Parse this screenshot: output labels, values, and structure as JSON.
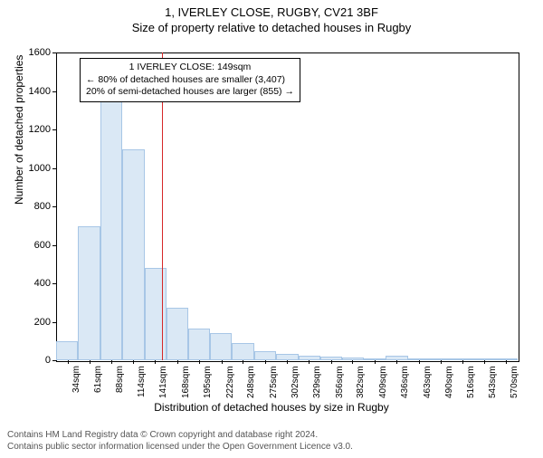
{
  "title": {
    "line1": "1, IVERLEY CLOSE, RUGBY, CV21 3BF",
    "line2": "Size of property relative to detached houses in Rugby"
  },
  "chart": {
    "type": "histogram",
    "ylabel": "Number of detached properties",
    "xlabel": "Distribution of detached houses by size in Rugby",
    "ylim": [
      0,
      1600
    ],
    "ytick_step": 200,
    "yticks": [
      0,
      200,
      400,
      600,
      800,
      1000,
      1200,
      1400,
      1600
    ],
    "x_range": [
      20,
      584
    ],
    "xticks": [
      34,
      61,
      88,
      114,
      141,
      168,
      195,
      222,
      248,
      275,
      302,
      329,
      356,
      382,
      409,
      436,
      463,
      490,
      516,
      543,
      570
    ],
    "xtick_unit": "sqm",
    "bars": [
      {
        "x0": 20,
        "x1": 47,
        "y": 100
      },
      {
        "x0": 47,
        "x1": 74,
        "y": 695
      },
      {
        "x0": 74,
        "x1": 101,
        "y": 1440
      },
      {
        "x0": 101,
        "x1": 128,
        "y": 1095
      },
      {
        "x0": 128,
        "x1": 155,
        "y": 480
      },
      {
        "x0": 155,
        "x1": 181,
        "y": 275
      },
      {
        "x0": 181,
        "x1": 208,
        "y": 165
      },
      {
        "x0": 208,
        "x1": 235,
        "y": 140
      },
      {
        "x0": 235,
        "x1": 262,
        "y": 90
      },
      {
        "x0": 262,
        "x1": 289,
        "y": 45
      },
      {
        "x0": 289,
        "x1": 316,
        "y": 35
      },
      {
        "x0": 316,
        "x1": 343,
        "y": 22
      },
      {
        "x0": 343,
        "x1": 369,
        "y": 18
      },
      {
        "x0": 369,
        "x1": 396,
        "y": 12
      },
      {
        "x0": 396,
        "x1": 423,
        "y": 8
      },
      {
        "x0": 423,
        "x1": 450,
        "y": 25
      },
      {
        "x0": 450,
        "x1": 477,
        "y": 4
      },
      {
        "x0": 477,
        "x1": 503,
        "y": 3
      },
      {
        "x0": 503,
        "x1": 530,
        "y": 2
      },
      {
        "x0": 530,
        "x1": 557,
        "y": 2
      },
      {
        "x0": 557,
        "x1": 584,
        "y": 2
      }
    ],
    "reference_line_x": 149,
    "bar_fill": "#dae8f5",
    "bar_border": "#a7c6e6",
    "ref_color": "#d62728",
    "background_color": "#ffffff",
    "title_fontsize": 13,
    "label_fontsize": 12,
    "tick_fontsize": 11
  },
  "annotation": {
    "line1": "1 IVERLEY CLOSE: 149sqm",
    "line2": "← 80% of detached houses are smaller (3,407)",
    "line3": "20% of semi-detached houses are larger (855) →"
  },
  "footer": {
    "line1": "Contains HM Land Registry data © Crown copyright and database right 2024.",
    "line2": "Contains public sector information licensed under the Open Government Licence v3.0."
  }
}
